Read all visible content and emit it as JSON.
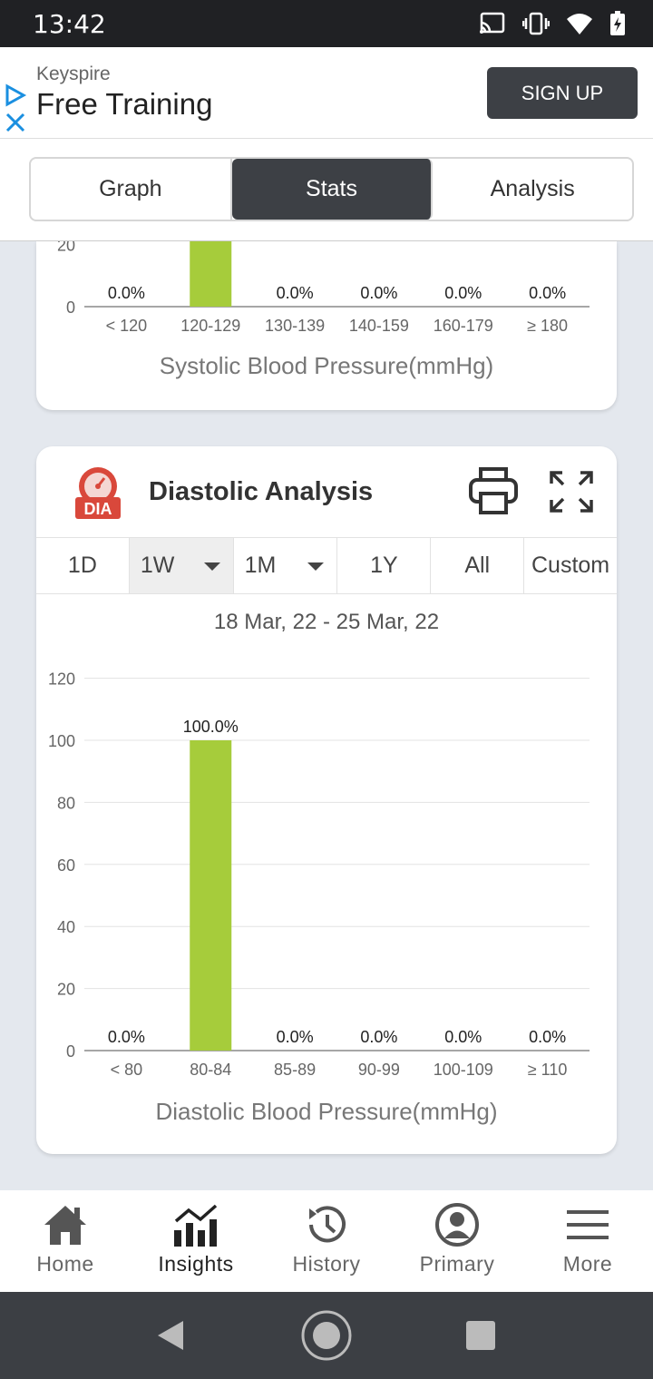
{
  "status_bar": {
    "time": "13:42"
  },
  "ad": {
    "brand": "Keyspire",
    "headline": "Free Training",
    "cta": "SIGN UP"
  },
  "tabs": [
    {
      "label": "Graph",
      "active": false
    },
    {
      "label": "Stats",
      "active": true
    },
    {
      "label": "Analysis",
      "active": false
    }
  ],
  "systolic_card": {
    "xlabel": "Systolic Blood Pressure(mmHg)"
  },
  "diastolic_card": {
    "title": "Diastolic Analysis",
    "badge": "DIA",
    "periods": [
      {
        "label": "1D"
      },
      {
        "label": "1W"
      },
      {
        "label": "1M"
      },
      {
        "label": "1Y"
      },
      {
        "label": "All"
      },
      {
        "label": "Custom"
      }
    ],
    "selected_period": "1W",
    "date_range": "18 Mar, 22 - 25 Mar, 22",
    "xlabel": "Diastolic Blood Pressure(mmHg)"
  },
  "chart_data": [
    {
      "type": "bar",
      "categories": [
        "< 120",
        "120-129",
        "130-139",
        "140-159",
        "160-179",
        "≥ 180"
      ],
      "values": [
        0,
        100,
        0,
        0,
        0,
        0
      ],
      "data_labels": [
        "0.0%",
        "",
        "0.0%",
        "0.0%",
        "0.0%",
        "0.0%"
      ],
      "visible_yticks": [
        "20",
        "0"
      ],
      "ylim": [
        0,
        120
      ],
      "bar_color": "#a6cc3b",
      "xlabel": "Systolic Blood Pressure(mmHg)",
      "note": "partially scrolled out of view"
    },
    {
      "type": "bar",
      "categories": [
        "< 80",
        "80-84",
        "85-89",
        "90-99",
        "100-109",
        "≥ 110"
      ],
      "values": [
        0,
        100,
        0,
        0,
        0,
        0
      ],
      "data_labels": [
        "0.0%",
        "100.0%",
        "0.0%",
        "0.0%",
        "0.0%",
        "0.0%"
      ],
      "yticks": [
        "0",
        "20",
        "40",
        "60",
        "80",
        "100",
        "120"
      ],
      "ylim": [
        0,
        120
      ],
      "bar_color": "#a6cc3b",
      "xlabel": "Diastolic Blood Pressure(mmHg)",
      "grid": true
    }
  ],
  "bottom_nav": [
    {
      "label": "Home",
      "icon": "home-icon",
      "active": false
    },
    {
      "label": "Insights",
      "icon": "insights-icon",
      "active": true
    },
    {
      "label": "History",
      "icon": "history-icon",
      "active": false
    },
    {
      "label": "Primary",
      "icon": "account-icon",
      "active": false
    },
    {
      "label": "More",
      "icon": "menu-icon",
      "active": false
    }
  ],
  "colors": {
    "accent_dark": "#3d4045",
    "bar": "#a6cc3b",
    "badge_red": "#d9483b"
  }
}
